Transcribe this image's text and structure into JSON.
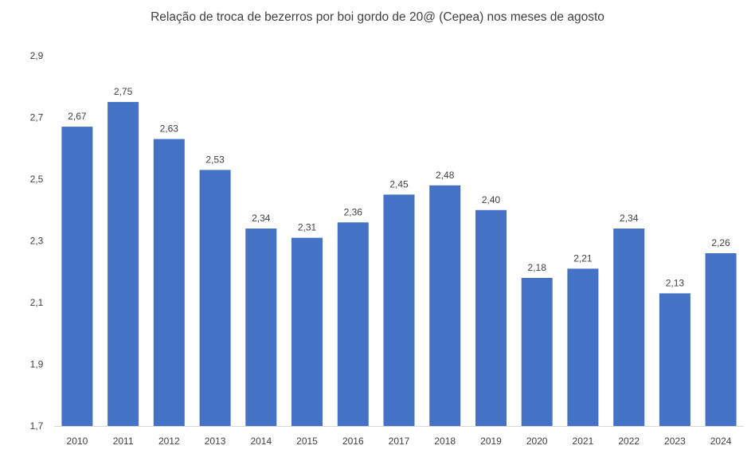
{
  "chart_data": {
    "type": "bar",
    "title": "Relação de troca de bezerros por boi gordo de 20@ (Cepea) nos meses de agosto",
    "xlabel": "",
    "ylabel": "",
    "categories": [
      "2010",
      "2011",
      "2012",
      "2013",
      "2014",
      "2015",
      "2016",
      "2017",
      "2018",
      "2019",
      "2020",
      "2021",
      "2022",
      "2023",
      "2024"
    ],
    "values": [
      2.67,
      2.75,
      2.63,
      2.53,
      2.34,
      2.31,
      2.36,
      2.45,
      2.48,
      2.4,
      2.18,
      2.21,
      2.34,
      2.13,
      2.26
    ],
    "data_labels": [
      "2,67",
      "2,75",
      "2,63",
      "2,53",
      "2,34",
      "2,31",
      "2,36",
      "2,45",
      "2,48",
      "2,40",
      "2,18",
      "2,21",
      "2,34",
      "2,13",
      "2,26"
    ],
    "ylim": [
      1.7,
      2.9
    ],
    "yticks": [
      1.7,
      1.9,
      2.1,
      2.3,
      2.5,
      2.7,
      2.9
    ],
    "ytick_labels": [
      "1,7",
      "1,9",
      "2,1",
      "2,3",
      "2,5",
      "2,7",
      "2,9"
    ],
    "grid": false,
    "legend": "none",
    "bar_color": "#4472c4"
  }
}
